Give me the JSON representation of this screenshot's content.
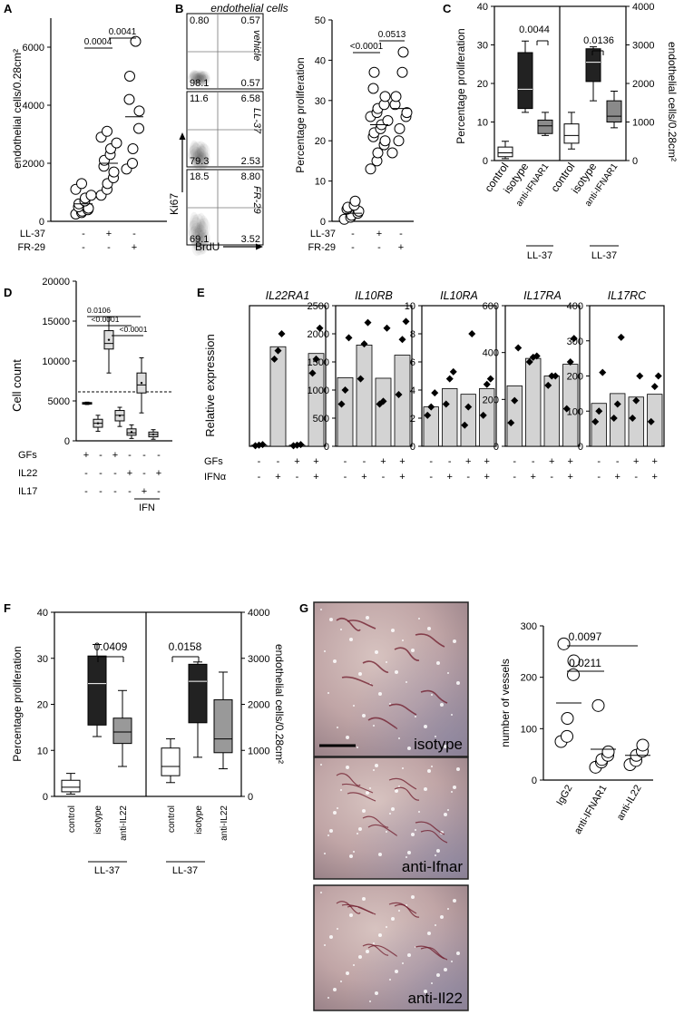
{
  "figure": {
    "panel_labels": [
      "A",
      "B",
      "C",
      "D",
      "E",
      "F",
      "G"
    ]
  },
  "panelA": {
    "ylabel": "endothelial cells/0.28cm²",
    "yticks": [
      "0",
      "2000",
      "4000",
      "6000"
    ],
    "row_labels": [
      "LL-37",
      "FR-29"
    ],
    "row_signs": [
      [
        "-",
        "+",
        "-"
      ],
      [
        "-",
        "-",
        "+"
      ]
    ],
    "pvalues": [
      "0.0004",
      "0.0041"
    ]
  },
  "panelB": {
    "title": "endothelial cells",
    "ylabel_flow": "Ki67",
    "xlabel_flow": "BrdU",
    "flow_plots": [
      {
        "condition": "vehicle",
        "tl": "0.80",
        "tr": "0.57",
        "bl": "98.1",
        "br": "0.57"
      },
      {
        "condition": "LL-37",
        "tl": "11.6",
        "tr": "6.58",
        "bl": "79.3",
        "br": "2.53"
      },
      {
        "condition": "FR-29",
        "tl": "18.5",
        "tr": "8.80",
        "bl": "69.1",
        "br": "3.52"
      }
    ],
    "scatter_ylabel": "Percentage proliferation",
    "scatter_yticks": [
      "0",
      "10",
      "20",
      "30",
      "40",
      "50"
    ],
    "row_labels": [
      "LL-37",
      "FR-29"
    ],
    "row_signs": [
      [
        "-",
        "+",
        "-"
      ],
      [
        "-",
        "-",
        "+"
      ]
    ],
    "pvalues": [
      "<0.0001",
      "0.0513"
    ]
  },
  "panelC": {
    "ylabel_left": "Percentage proliferation",
    "ylabel_right": "endothelial cells/0.28cm²",
    "yticks_left": [
      "0",
      "10",
      "20",
      "30",
      "40"
    ],
    "yticks_right": [
      "0",
      "1000",
      "2000",
      "3000",
      "4000"
    ],
    "categories": [
      "control",
      "isotype",
      "anti-IFNAR1"
    ],
    "group_label": "LL-37",
    "pvalues": [
      "0.0044",
      "0.0136"
    ]
  },
  "panelD": {
    "ylabel": "Cell count",
    "yticks": [
      "0",
      "5000",
      "10000",
      "15000",
      "20000"
    ],
    "row_labels": [
      "GFs",
      "IL22",
      "IL17"
    ],
    "row_signs": [
      [
        "+",
        "-",
        "+",
        "-",
        "-",
        "-"
      ],
      [
        "-",
        "-",
        "-",
        "+",
        "-",
        "+"
      ],
      [
        "-",
        "-",
        "-",
        "-",
        "+",
        "-"
      ]
    ],
    "group_label": "IFN",
    "pvalues": [
      "0.0106",
      "<0.0001",
      "<0.0001"
    ]
  },
  "panelE": {
    "ylabel": "Relative expression",
    "row_labels": [
      "GFs",
      "IFNα"
    ],
    "row_signs": [
      [
        "-",
        "-",
        "+",
        "+"
      ],
      [
        "-",
        "+",
        "-",
        "+"
      ]
    ],
    "genes": [
      {
        "name": "IL22RA1",
        "yticks": []
      },
      {
        "name": "IL10RB",
        "yticks": [
          "0",
          "500",
          "1000",
          "1500",
          "2000",
          "2500"
        ]
      },
      {
        "name": "IL10RA",
        "yticks": [
          "0",
          "2",
          "4",
          "6",
          "8",
          "10"
        ]
      },
      {
        "name": "IL17RA",
        "yticks": [
          "0",
          "200",
          "400",
          "600"
        ]
      },
      {
        "name": "IL17RC",
        "yticks": [
          "0",
          "100",
          "200",
          "300",
          "400"
        ]
      }
    ]
  },
  "panelF": {
    "ylabel_left": "Percentage proliferation",
    "ylabel_right": "endothelial cells/0.28cm²",
    "yticks_left": [
      "0",
      "10",
      "20",
      "30",
      "40"
    ],
    "yticks_right": [
      "0",
      "1000",
      "2000",
      "3000",
      "4000"
    ],
    "categories": [
      "control",
      "isotype",
      "anti-IL22"
    ],
    "group_label": "LL-37",
    "pvalues": [
      "0.0409",
      "0.0158"
    ]
  },
  "panelG": {
    "photos": [
      "isotype",
      "anti-Ifnar",
      "anti-Il22"
    ],
    "ylabel": "number of vessels",
    "yticks": [
      "0",
      "100",
      "200",
      "300"
    ],
    "categories": [
      "IgG2",
      "anti-IFNAR1",
      "anti-IL22"
    ],
    "pvalues": [
      "0.0211",
      "0.0097"
    ]
  },
  "chart_data": [
    {
      "type": "scatter",
      "panel": "A",
      "categories": [
        "-/-",
        "LL-37",
        "FR-29"
      ],
      "ylim": [
        0,
        7000
      ],
      "series": [
        {
          "values": [
            [
              250,
              300,
              350,
              400,
              450,
              500,
              600,
              700,
              800,
              900,
              1100,
              1300
            ],
            [
              900,
              1100,
              1300,
              1500,
              1700,
              1900,
              2100,
              2300,
              2500,
              2700,
              2900,
              3100
            ],
            [
              1800,
              2000,
              2500,
              3200,
              3800,
              4200,
              5000,
              6200
            ]
          ]
        }
      ],
      "means": [
        600,
        2000,
        3600
      ]
    },
    {
      "type": "scatter",
      "panel": "B",
      "categories": [
        "-/-",
        "LL-37",
        "FR-29"
      ],
      "ylim": [
        0,
        50
      ],
      "series": [
        {
          "values": [
            [
              0.5,
              1,
              1.5,
              2,
              2.5,
              3,
              3.5,
              4,
              5
            ],
            [
              13,
              15,
              17,
              19,
              20,
              21,
              22,
              23,
              24,
              25,
              26,
              27,
              28,
              29,
              31,
              33,
              37
            ],
            [
              17,
              20,
              23,
              26,
              27,
              29,
              31,
              37,
              42
            ]
          ]
        }
      ],
      "means": [
        2,
        24,
        28
      ]
    },
    {
      "type": "box",
      "panel": "C",
      "left_categories": [
        "control",
        "isotype",
        "anti-IFNAR1"
      ],
      "left_ylim": [
        0,
        40
      ],
      "left_boxes": [
        {
          "min": 0.5,
          "q1": 1,
          "median": 2,
          "q3": 3.5,
          "max": 5
        },
        {
          "min": 12.5,
          "q1": 13.5,
          "median": 18.5,
          "q3": 28,
          "max": 31
        },
        {
          "min": 6.5,
          "q1": 7,
          "median": 9,
          "q3": 10.5,
          "max": 12.5
        }
      ],
      "right_categories": [
        "control",
        "isotype",
        "anti-IFNAR1"
      ],
      "right_ylim": [
        0,
        4000
      ],
      "right_boxes": [
        {
          "min": 300,
          "q1": 450,
          "median": 650,
          "q3": 950,
          "max": 1250
        },
        {
          "min": 1550,
          "q1": 2050,
          "median": 2550,
          "q3": 2900,
          "max": 2950
        },
        {
          "min": 850,
          "q1": 1000,
          "median": 1150,
          "q3": 1550,
          "max": 1800
        }
      ]
    },
    {
      "type": "box",
      "panel": "D",
      "ylim": [
        0,
        20000
      ],
      "reference_line": 5000,
      "boxes": [
        {
          "min": 4550,
          "q1": 4600,
          "median": 4700,
          "q3": 4800,
          "max": 4850
        },
        {
          "min": 1200,
          "q1": 1700,
          "median": 2200,
          "q3": 2700,
          "max": 3200
        },
        {
          "min": 8500,
          "q1": 11500,
          "median": 12200,
          "q3": 13800,
          "max": 15500
        },
        {
          "min": 1800,
          "q1": 2500,
          "median": 3200,
          "q3": 3800,
          "max": 4200
        },
        {
          "min": 300,
          "q1": 700,
          "median": 1000,
          "q3": 1500,
          "max": 2000
        },
        {
          "min": 3500,
          "q1": 6000,
          "median": 7000,
          "q3": 8500,
          "max": 10400
        },
        {
          "min": 200,
          "q1": 500,
          "median": 800,
          "q3": 1100,
          "max": 1400
        }
      ]
    },
    {
      "type": "bar",
      "panel": "E",
      "categories": [
        "-/-",
        "-/IFNα",
        "GFs/-",
        "GFs/IFNα"
      ],
      "series": [
        {
          "name": "IL22RA1",
          "ylim": [
            0,
            250
          ],
          "values": [
            2,
            177,
            2,
            165
          ],
          "points": [
            [
              1,
              2,
              3
            ],
            [
              155,
              170,
              200
            ],
            [
              1,
              2,
              3
            ],
            [
              130,
              155,
              210
            ]
          ]
        },
        {
          "name": "IL10RB",
          "ylim": [
            0,
            2500
          ],
          "values": [
            1220,
            1800,
            1210,
            1620
          ],
          "points": [
            [
              750,
              1000,
              1930
            ],
            [
              1200,
              1820,
              2200
            ],
            [
              750,
              800,
              2100
            ],
            [
              920,
              1900,
              2220
            ]
          ]
        },
        {
          "name": "IL10RA",
          "ylim": [
            0,
            10
          ],
          "values": [
            2.8,
            4.1,
            3.7,
            4.1
          ],
          "points": [
            [
              2.2,
              2.8,
              3.8
            ],
            [
              3.0,
              4.8,
              5.3
            ],
            [
              1.5,
              2.8,
              8.0
            ],
            [
              2.2,
              4.4,
              4.8
            ]
          ]
        },
        {
          "name": "IL17RA",
          "ylim": [
            0,
            600
          ],
          "values": [
            258,
            375,
            300,
            350
          ],
          "points": [
            [
              100,
              195,
              420
            ],
            [
              360,
              380,
              385
            ],
            [
              260,
              300,
              300
            ],
            [
              160,
              360,
              460
            ]
          ]
        },
        {
          "name": "IL17RC",
          "ylim": [
            0,
            400
          ],
          "values": [
            122,
            150,
            140,
            148
          ],
          "points": [
            [
              70,
              100,
              210
            ],
            [
              80,
              120,
              310
            ],
            [
              80,
              130,
              200
            ],
            [
              70,
              170,
              200
            ]
          ]
        }
      ]
    },
    {
      "type": "box",
      "panel": "F",
      "left_categories": [
        "control",
        "isotype",
        "anti-IL22"
      ],
      "left_ylim": [
        0,
        40
      ],
      "left_boxes": [
        {
          "min": 0.5,
          "q1": 1,
          "median": 2,
          "q3": 3.5,
          "max": 5
        },
        {
          "min": 13,
          "q1": 15.5,
          "median": 24.5,
          "q3": 30.5,
          "max": 33
        },
        {
          "min": 6.5,
          "q1": 11.5,
          "median": 14,
          "q3": 17,
          "max": 23
        }
      ],
      "right_categories": [
        "control",
        "isotype",
        "anti-IL22"
      ],
      "right_ylim": [
        0,
        4000
      ],
      "right_boxes": [
        {
          "min": 300,
          "q1": 450,
          "median": 650,
          "q3": 1050,
          "max": 1250
        },
        {
          "min": 850,
          "q1": 1600,
          "median": 2500,
          "q3": 2870,
          "max": 2920
        },
        {
          "min": 600,
          "q1": 950,
          "median": 1250,
          "q3": 2100,
          "max": 2700
        }
      ]
    },
    {
      "type": "scatter",
      "panel": "G",
      "categories": [
        "IgG2",
        "anti-IFNAR1",
        "anti-IL22"
      ],
      "ylim": [
        0,
        300
      ],
      "series": [
        {
          "values": [
            [
              75,
              85,
              120,
              205,
              232,
              265
            ],
            [
              25,
              35,
              40,
              48,
              55,
              145
            ],
            [
              30,
              38,
              48,
              56,
              68
            ]
          ]
        }
      ],
      "means": [
        150,
        60,
        48
      ]
    }
  ]
}
